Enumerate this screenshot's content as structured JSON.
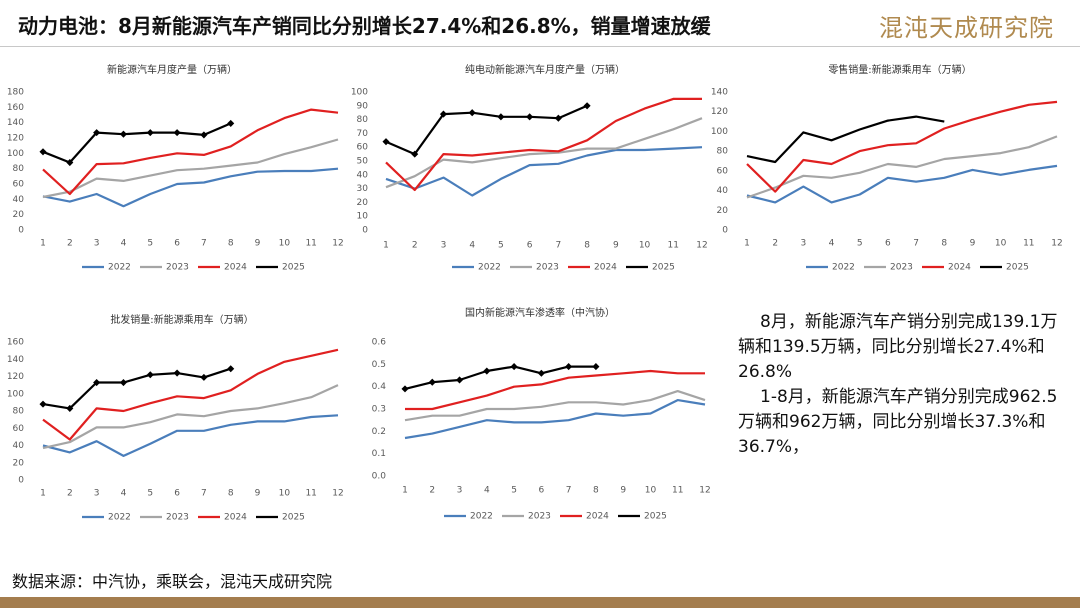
{
  "header": {
    "title": "动力电池：8月新能源汽车产销同比分别增长27.4%和26.8%，销量增速放缓",
    "logo": "混沌天成研究院"
  },
  "chart_data": [
    {
      "type": "line",
      "title": "新能源汽车月度产量（万辆）",
      "categories": [
        "1",
        "2",
        "3",
        "4",
        "5",
        "6",
        "7",
        "8",
        "9",
        "10",
        "11",
        "12"
      ],
      "ylim": [
        0,
        180
      ],
      "yticks": [
        0,
        20,
        40,
        60,
        80,
        100,
        120,
        140,
        160,
        180
      ],
      "series": [
        {
          "name": "2022",
          "color": "#4a7ebb",
          "values": [
            44,
            37,
            47,
            31,
            47,
            60,
            62,
            70,
            76,
            77,
            77,
            80
          ]
        },
        {
          "name": "2023",
          "color": "#a5a5a5",
          "values": [
            43,
            50,
            67,
            64,
            71,
            78,
            80,
            84,
            88,
            99,
            108,
            118
          ]
        },
        {
          "name": "2024",
          "color": "#e02020",
          "values": [
            79,
            47,
            86,
            87,
            94,
            100,
            98,
            109,
            130,
            146,
            157,
            153
          ]
        },
        {
          "name": "2025",
          "color": "#000000",
          "marker": "diamond",
          "values": [
            102,
            88,
            127,
            125,
            127,
            127,
            124,
            139,
            null,
            null,
            null,
            null
          ]
        }
      ]
    },
    {
      "type": "line",
      "title": "纯电动新能源汽车月度产量（万辆）",
      "categories": [
        "1",
        "2",
        "3",
        "4",
        "5",
        "6",
        "7",
        "8",
        "9",
        "10",
        "11",
        "12"
      ],
      "ylim": [
        0,
        100
      ],
      "yticks": [
        0,
        10,
        20,
        30,
        40,
        50,
        60,
        70,
        80,
        90,
        100
      ],
      "series": [
        {
          "name": "2022",
          "color": "#4a7ebb",
          "values": [
            37,
            30,
            38,
            25,
            37,
            47,
            48,
            54,
            58,
            58,
            59,
            60
          ]
        },
        {
          "name": "2023",
          "color": "#a5a5a5",
          "values": [
            31,
            39,
            51,
            49,
            52,
            55,
            56,
            59,
            59,
            66,
            73,
            81
          ]
        },
        {
          "name": "2024",
          "color": "#e02020",
          "values": [
            49,
            29,
            55,
            54,
            56,
            58,
            57,
            65,
            79,
            88,
            95,
            95
          ]
        },
        {
          "name": "2025",
          "color": "#000000",
          "marker": "diamond",
          "values": [
            64,
            55,
            84,
            85,
            82,
            82,
            81,
            90,
            null,
            null,
            null,
            null
          ]
        }
      ]
    },
    {
      "type": "line",
      "title": "零售销量:新能源乘用车（万辆）",
      "categories": [
        "1",
        "2",
        "3",
        "4",
        "5",
        "6",
        "7",
        "8",
        "9",
        "10",
        "11",
        "12"
      ],
      "ylim": [
        0,
        140
      ],
      "yticks": [
        0,
        20,
        40,
        60,
        80,
        100,
        120,
        140
      ],
      "series": [
        {
          "name": "2022",
          "color": "#4a7ebb",
          "values": [
            35,
            28,
            44,
            28,
            36,
            53,
            49,
            53,
            61,
            56,
            61,
            65
          ]
        },
        {
          "name": "2023",
          "color": "#a5a5a5",
          "values": [
            33,
            43,
            55,
            53,
            58,
            67,
            64,
            72,
            75,
            78,
            84,
            95
          ]
        },
        {
          "name": "2024",
          "color": "#e02020",
          "values": [
            67,
            39,
            71,
            67,
            80,
            86,
            88,
            103,
            112,
            120,
            127,
            130
          ]
        },
        {
          "name": "2025",
          "color": "#000000",
          "values": [
            75,
            69,
            99,
            91,
            102,
            111,
            115,
            110,
            null,
            null,
            null,
            null
          ]
        }
      ]
    },
    {
      "type": "line",
      "title": "批发销量:新能源乘用车（万辆）",
      "categories": [
        "1",
        "2",
        "3",
        "4",
        "5",
        "6",
        "7",
        "8",
        "9",
        "10",
        "11",
        "12"
      ],
      "ylim": [
        0,
        160
      ],
      "yticks": [
        0,
        20,
        40,
        60,
        80,
        100,
        120,
        140,
        160
      ],
      "series": [
        {
          "name": "2022",
          "color": "#4a7ebb",
          "values": [
            40,
            32,
            45,
            28,
            42,
            57,
            57,
            64,
            68,
            68,
            73,
            75
          ]
        },
        {
          "name": "2023",
          "color": "#a5a5a5",
          "values": [
            37,
            44,
            61,
            61,
            67,
            76,
            74,
            80,
            83,
            89,
            96,
            110
          ]
        },
        {
          "name": "2024",
          "color": "#e02020",
          "values": [
            70,
            47,
            83,
            80,
            89,
            97,
            95,
            104,
            123,
            137,
            144,
            151
          ]
        },
        {
          "name": "2025",
          "color": "#000000",
          "marker": "diamond",
          "values": [
            88,
            83,
            113,
            113,
            122,
            124,
            119,
            129,
            null,
            null,
            null,
            null
          ]
        }
      ]
    },
    {
      "type": "line",
      "title": "国内新能源汽车渗透率（中汽协）",
      "categories": [
        "1",
        "2",
        "3",
        "4",
        "5",
        "6",
        "7",
        "8",
        "9",
        "10",
        "11",
        "12"
      ],
      "ylim": [
        0,
        0.6
      ],
      "yticks": [
        {
          "value": 0,
          "label": "0.0"
        },
        0.1,
        0.2,
        0.3,
        0.4,
        0.5,
        0.6
      ],
      "series": [
        {
          "name": "2022",
          "color": "#4a7ebb",
          "values": [
            0.17,
            0.19,
            0.22,
            0.25,
            0.24,
            0.24,
            0.25,
            0.28,
            0.27,
            0.28,
            0.34,
            0.32
          ]
        },
        {
          "name": "2023",
          "color": "#a5a5a5",
          "values": [
            0.25,
            0.27,
            0.27,
            0.3,
            0.3,
            0.31,
            0.33,
            0.33,
            0.32,
            0.34,
            0.38,
            0.34
          ]
        },
        {
          "name": "2024",
          "color": "#e02020",
          "values": [
            0.3,
            0.3,
            0.33,
            0.36,
            0.4,
            0.41,
            0.44,
            0.45,
            0.46,
            0.47,
            0.46,
            0.46
          ]
        },
        {
          "name": "2025",
          "color": "#000000",
          "marker": "diamond",
          "values": [
            0.39,
            0.42,
            0.43,
            0.47,
            0.49,
            0.46,
            0.49,
            0.49,
            null,
            null,
            null,
            null
          ]
        }
      ]
    }
  ],
  "notes": [
    "8月，新能源汽车产销分别完成139.1万辆和139.5万辆，同比分别增长27.4%和26.8%",
    "1-8月，新能源汽车产销分别完成962.5万辆和962万辆，同比分别增长37.3%和36.7%，"
  ],
  "source": "数据来源：中汽协，乘联会，混沌天成研究院"
}
